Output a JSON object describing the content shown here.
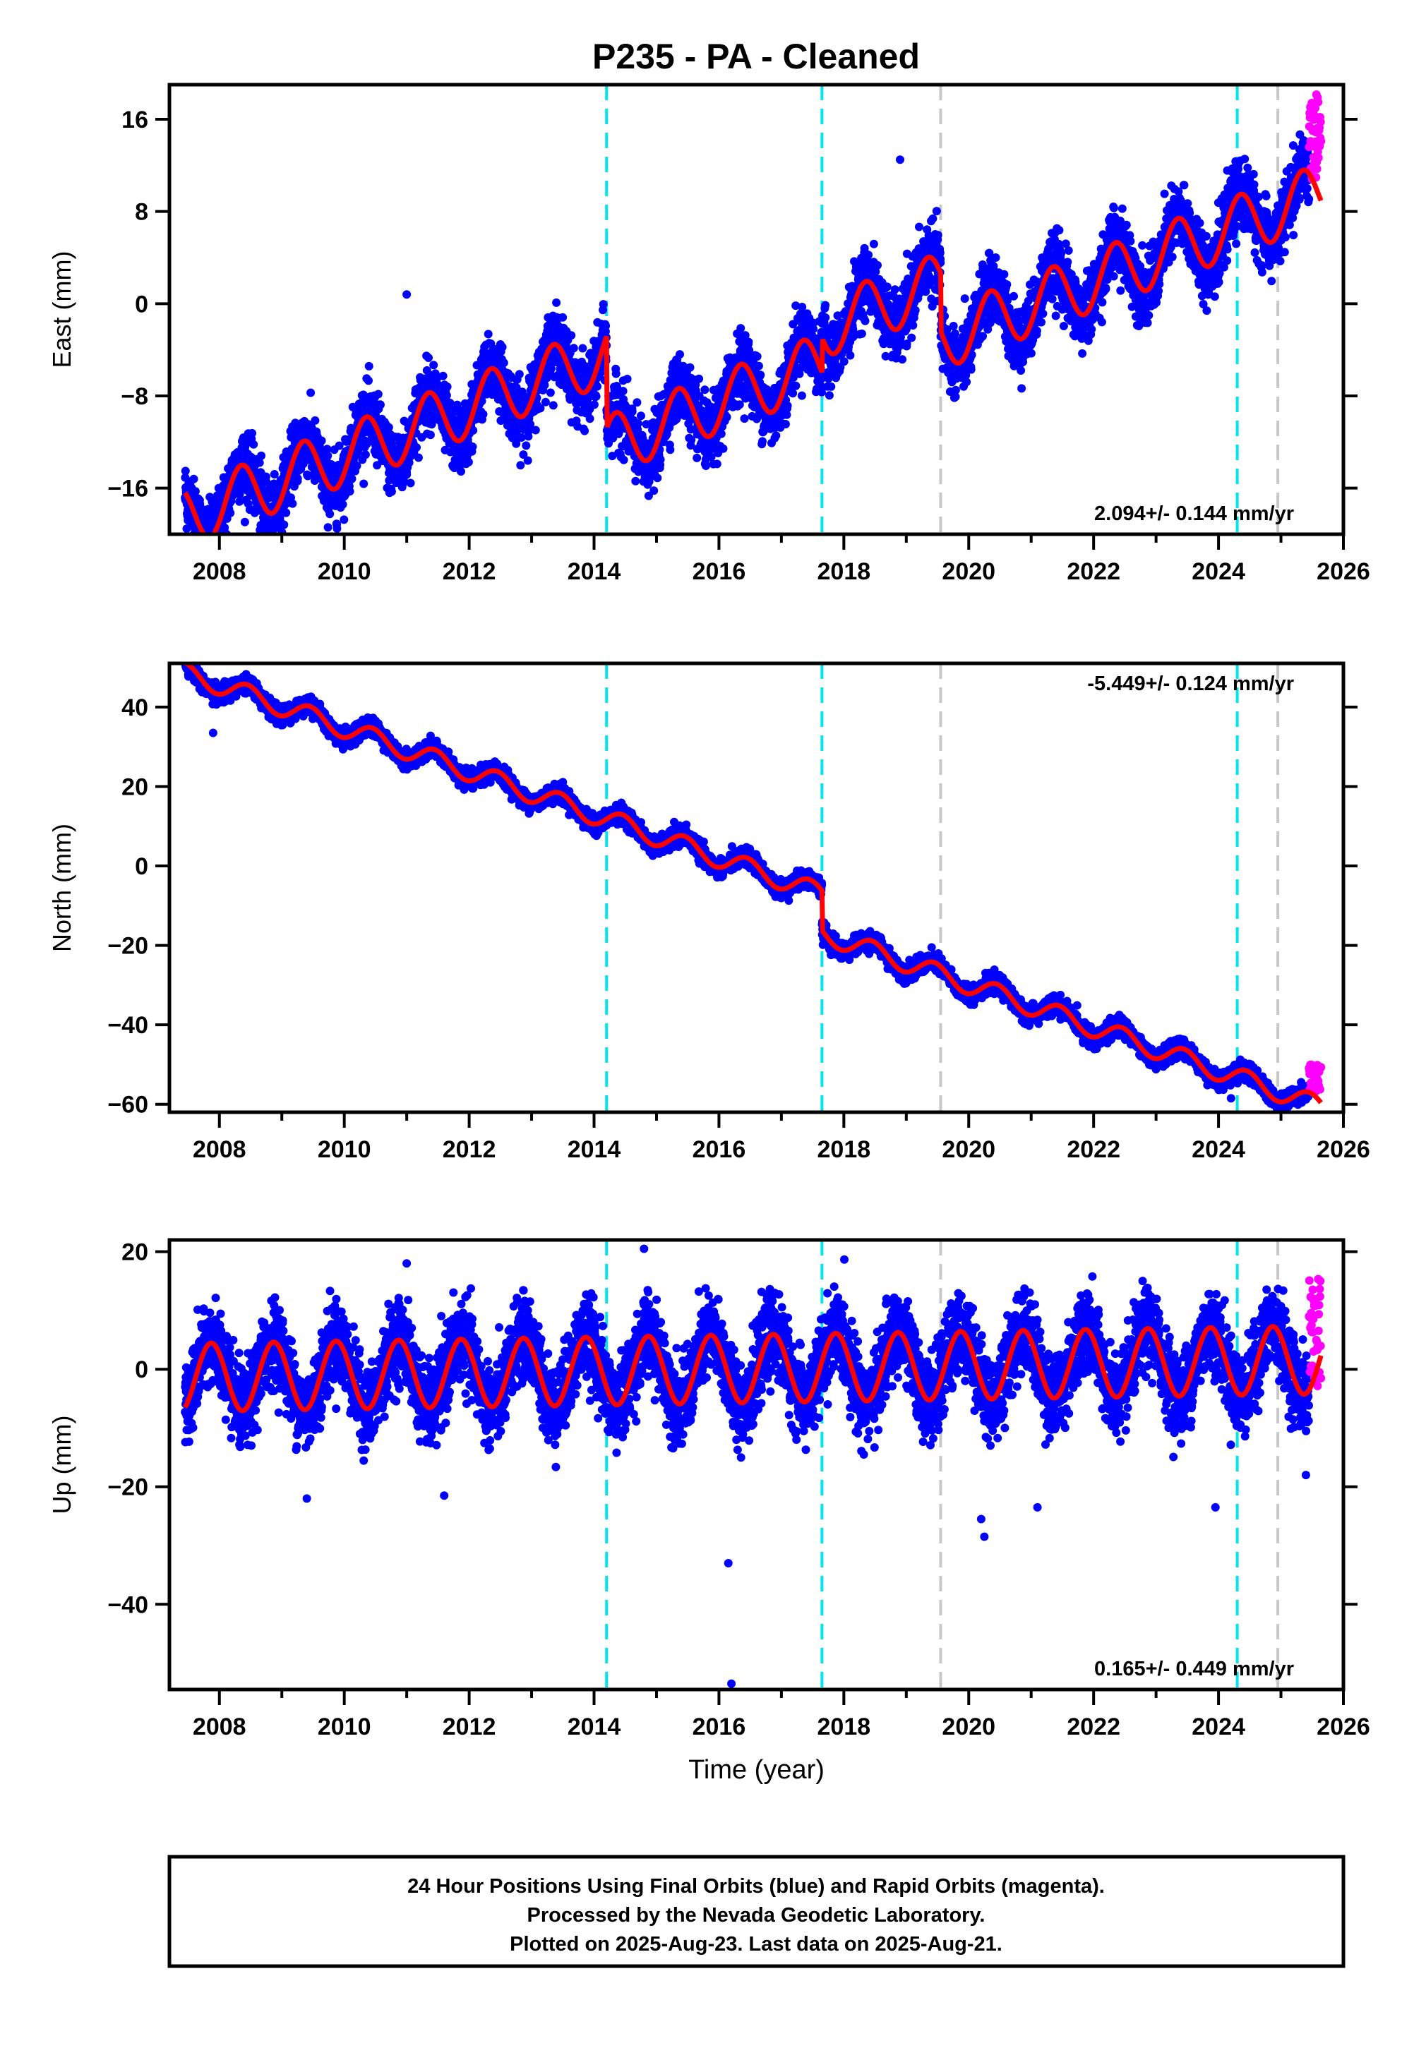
{
  "figure": {
    "title": "P235  - PA - Cleaned",
    "caption_lines": [
      "24 Hour Positions Using Final Orbits (blue) and Rapid Orbits (magenta).",
      "Processed by the Nevada Geodetic Laboratory.",
      "Plotted on 2025-Aug-23. Last data on 2025-Aug-21."
    ],
    "colors": {
      "final_orbits": "#0000ff",
      "rapid_orbits": "#ff00ff",
      "model_fit": "#ff0000",
      "equipment_change": "#00e5ee",
      "other_event": "#c8c8c8"
    }
  },
  "chart_data": [
    {
      "type": "scatter",
      "ylabel": "East (mm)",
      "xlabel": "",
      "xlim": [
        2007.2,
        2026.0
      ],
      "ylim": [
        -20,
        19
      ],
      "xticks": [
        2008,
        2010,
        2012,
        2014,
        2016,
        2018,
        2020,
        2022,
        2024,
        2026
      ],
      "yticks": [
        -16,
        -8,
        0,
        8,
        16
      ],
      "rate_label": "2.094+/- 0.144 mm/yr",
      "rate_position": "bottom-right",
      "grid": false,
      "x_start": 2007.45,
      "x_end": 2025.64,
      "rapid_start": 2025.45,
      "trend": {
        "slope": 2.094,
        "intercept_at_2016": -0.6
      },
      "offsets": [
        {
          "year": 2014.2,
          "value": -8.0
        },
        {
          "year": 2017.65,
          "value": 3.0
        },
        {
          "year": 2019.55,
          "value": -5.0
        }
      ],
      "seasonal_amplitude": 2.6,
      "seasonal_phase": 0.1,
      "scatter": 1.4,
      "rapid_range": [
        10.8,
        18.2
      ],
      "outliers": [
        [
          2014.6,
          -10.5
        ],
        [
          2018.9,
          12.5
        ],
        [
          2011.0,
          0.8
        ]
      ],
      "vertical_lines": [
        {
          "year": 2014.2,
          "kind": "equipment_change"
        },
        {
          "year": 2017.65,
          "kind": "equipment_change"
        },
        {
          "year": 2019.55,
          "kind": "other_event"
        },
        {
          "year": 2024.3,
          "kind": "equipment_change"
        },
        {
          "year": 2024.95,
          "kind": "other_event"
        }
      ]
    },
    {
      "type": "scatter",
      "ylabel": "North (mm)",
      "xlabel": "",
      "xlim": [
        2007.2,
        2026.0
      ],
      "ylim": [
        -62,
        51
      ],
      "xticks": [
        2008,
        2010,
        2012,
        2014,
        2016,
        2018,
        2020,
        2022,
        2024,
        2026
      ],
      "yticks": [
        -60,
        -40,
        -20,
        0,
        20,
        40
      ],
      "rate_label": "-5.449+/- 0.124 mm/yr",
      "rate_position": "top-right",
      "grid": false,
      "x_start": 2007.45,
      "x_end": 2025.64,
      "rapid_start": 2025.45,
      "trend": {
        "slope": -5.449,
        "intercept_at_2016": 2.0
      },
      "offsets": [
        {
          "year": 2014.2,
          "value": 0.0
        },
        {
          "year": 2017.65,
          "value": -10.0
        },
        {
          "year": 2019.55,
          "value": 0.0
        }
      ],
      "seasonal_amplitude": 2.5,
      "seasonal_phase": 0.2,
      "scatter": 1.1,
      "rapid_range": [
        -57.0,
        -50.0
      ],
      "outliers": [
        [
          2007.9,
          33.5
        ],
        [
          2024.2,
          -58.5
        ]
      ],
      "vertical_lines": [
        {
          "year": 2014.2,
          "kind": "equipment_change"
        },
        {
          "year": 2017.65,
          "kind": "equipment_change"
        },
        {
          "year": 2019.55,
          "kind": "other_event"
        },
        {
          "year": 2024.3,
          "kind": "equipment_change"
        },
        {
          "year": 2024.95,
          "kind": "other_event"
        }
      ]
    },
    {
      "type": "scatter",
      "ylabel": "Up (mm)",
      "xlabel": "Time (year)",
      "xlim": [
        2007.2,
        2026.0
      ],
      "ylim": [
        -54.5,
        22
      ],
      "xticks": [
        2008,
        2010,
        2012,
        2014,
        2016,
        2018,
        2020,
        2022,
        2024,
        2026
      ],
      "yticks": [
        -40,
        -20,
        0,
        20
      ],
      "rate_label": "0.165+/- 0.449 mm/yr",
      "rate_position": "bottom-right",
      "grid": false,
      "x_start": 2007.45,
      "x_end": 2025.64,
      "rapid_start": 2025.45,
      "trend": {
        "slope": 0.165,
        "intercept_at_2016": 0.0
      },
      "offsets": [],
      "seasonal_amplitude": 5.8,
      "seasonal_phase": 0.62,
      "scatter": 3.4,
      "rapid_range": [
        -4.0,
        15.5
      ],
      "outliers": [
        [
          2016.2,
          -53.5
        ],
        [
          2016.15,
          -33.0
        ],
        [
          2020.2,
          -25.5
        ],
        [
          2020.25,
          -28.5
        ],
        [
          2021.1,
          -23.5
        ],
        [
          2009.4,
          -22.0
        ],
        [
          2011.6,
          -21.5
        ],
        [
          2014.8,
          20.5
        ],
        [
          2011.0,
          18.0
        ],
        [
          2023.95,
          -23.5
        ],
        [
          2025.4,
          -18.0
        ]
      ],
      "vertical_lines": [
        {
          "year": 2014.2,
          "kind": "equipment_change"
        },
        {
          "year": 2017.65,
          "kind": "equipment_change"
        },
        {
          "year": 2019.55,
          "kind": "other_event"
        },
        {
          "year": 2024.3,
          "kind": "equipment_change"
        },
        {
          "year": 2024.95,
          "kind": "other_event"
        }
      ]
    }
  ]
}
